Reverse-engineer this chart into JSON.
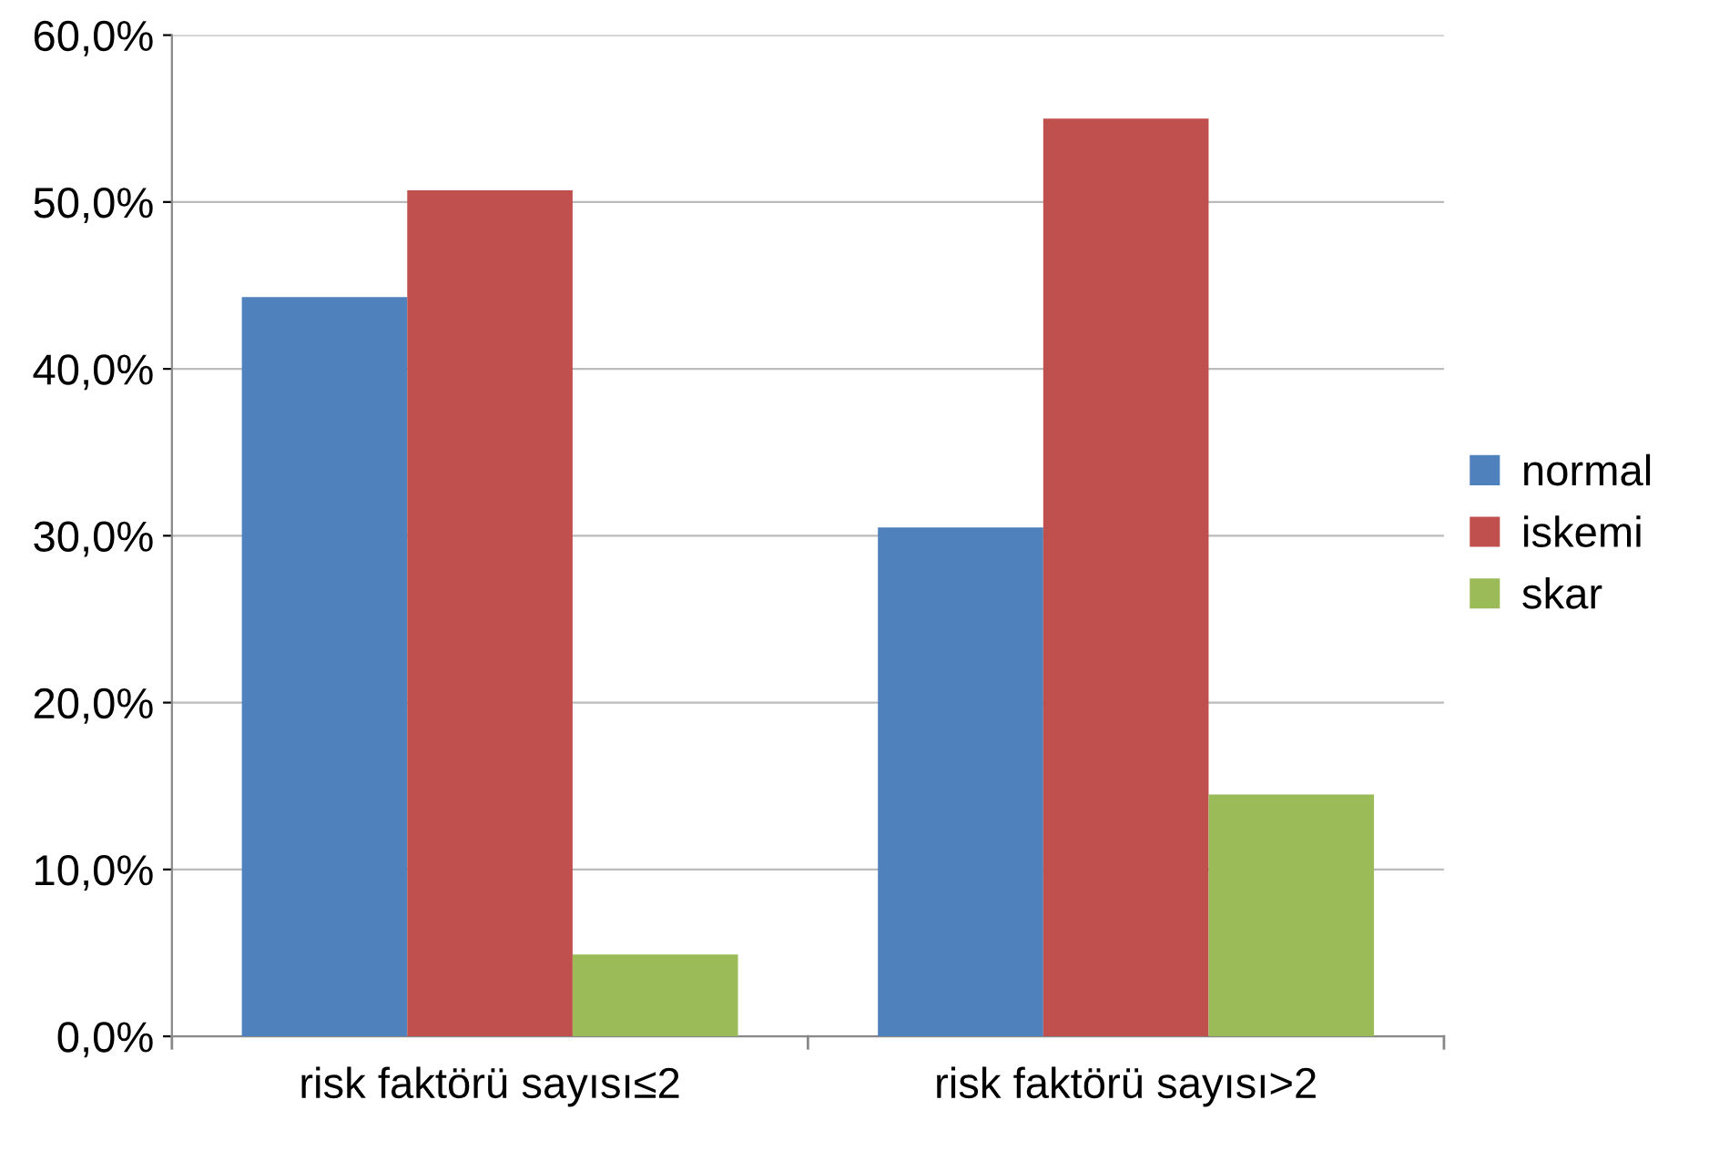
{
  "chart_data": {
    "type": "bar",
    "categories": [
      "risk faktörü sayısı≤2",
      "risk faktörü sayısı>2"
    ],
    "series": [
      {
        "name": "normal",
        "color": "#4f81bd",
        "values": [
          44.3,
          30.5
        ]
      },
      {
        "name": "iskemi",
        "color": "#c0504d",
        "values": [
          50.7,
          55.0
        ]
      },
      {
        "name": "skar",
        "color": "#9bbb59",
        "values": [
          4.9,
          14.5
        ]
      }
    ],
    "ylim": [
      0,
      60
    ],
    "yticks": [
      {
        "value": 0,
        "label": "0,0%"
      },
      {
        "value": 10,
        "label": "10,0%"
      },
      {
        "value": 20,
        "label": "20,0%"
      },
      {
        "value": 30,
        "label": "30,0%"
      },
      {
        "value": 40,
        "label": "40,0%"
      },
      {
        "value": 50,
        "label": "50,0%"
      },
      {
        "value": 60,
        "label": "60,0%"
      }
    ],
    "grid": "y",
    "legend": "right"
  }
}
